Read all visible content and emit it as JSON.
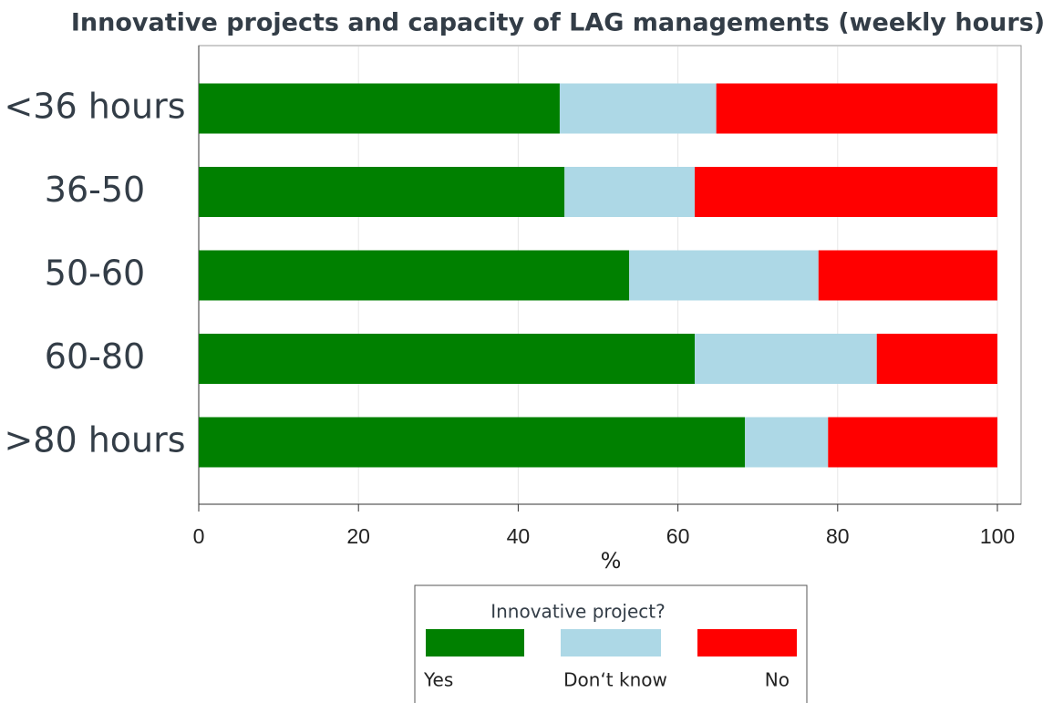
{
  "chart_data": {
    "type": "stacked_barh",
    "title": "Innovative projects and capacity of LAG managements (weekly hours)",
    "categories": [
      "<36 hours",
      "36-50",
      "50-60",
      "60-80",
      ">80 hours"
    ],
    "series": [
      {
        "name": "Yes",
        "color": "#008000",
        "values": [
          45.2,
          45.8,
          53.9,
          62.1,
          68.4
        ]
      },
      {
        "name": "Don‘t know",
        "color": "#add8e6",
        "values": [
          19.6,
          16.3,
          23.7,
          22.8,
          10.4
        ]
      },
      {
        "name": "No",
        "color": "#ff0000",
        "values": [
          35.2,
          37.9,
          22.4,
          15.1,
          21.2
        ]
      }
    ],
    "xlabel": "%",
    "xlim": [
      0,
      100
    ],
    "xticks": [
      0,
      20,
      40,
      60,
      80,
      100
    ],
    "legend_title": "Innovative project?",
    "grid": true
  }
}
